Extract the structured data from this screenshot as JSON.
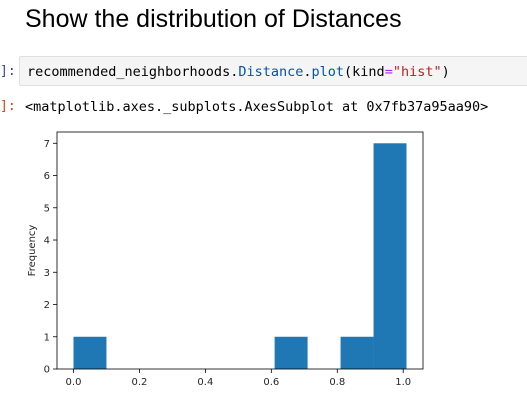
{
  "notebook": {
    "heading": "Show the distribution of Distances",
    "in_prompt": "]:",
    "out_prompt": "]:",
    "code": {
      "object": "recommended_neighborhoods",
      "dot1": ".",
      "attribute": "Distance",
      "dot2": ".",
      "method": "plot",
      "open_paren": "(",
      "kwarg": "kind",
      "equals": "=",
      "string": "\"hist\"",
      "close_paren": ")"
    },
    "output_repr": "<matplotlib.axes._subplots.AxesSubplot at 0x7fb37a95aa90>"
  },
  "colors": {
    "bar": "#1f77b4",
    "in_prompt": "#303f9f",
    "out_prompt": "#d84315",
    "code_bg": "#f5f5f5"
  },
  "chart_data": {
    "type": "bar",
    "title": "",
    "xlabel": "",
    "ylabel": "Frequency",
    "bins": [
      {
        "start": 0.0,
        "end": 0.1,
        "count": 1
      },
      {
        "start": 0.1,
        "end": 0.2,
        "count": 0
      },
      {
        "start": 0.2,
        "end": 0.3,
        "count": 0
      },
      {
        "start": 0.3,
        "end": 0.41,
        "count": 0
      },
      {
        "start": 0.41,
        "end": 0.51,
        "count": 0
      },
      {
        "start": 0.51,
        "end": 0.61,
        "count": 0
      },
      {
        "start": 0.61,
        "end": 0.71,
        "count": 1
      },
      {
        "start": 0.71,
        "end": 0.81,
        "count": 0
      },
      {
        "start": 0.81,
        "end": 0.91,
        "count": 1
      },
      {
        "start": 0.91,
        "end": 1.01,
        "count": 7
      }
    ],
    "xticks": [
      "0.0",
      "0.2",
      "0.4",
      "0.6",
      "0.8",
      "1.0"
    ],
    "xtick_values": [
      0.0,
      0.2,
      0.4,
      0.6,
      0.8,
      1.0
    ],
    "yticks": [
      "0",
      "1",
      "2",
      "3",
      "4",
      "5",
      "6",
      "7"
    ],
    "ytick_values": [
      0,
      1,
      2,
      3,
      4,
      5,
      6,
      7
    ],
    "xlim": [
      -0.05,
      1.06
    ],
    "ylim": [
      0,
      7.35
    ],
    "grid": false,
    "legend": "none"
  }
}
